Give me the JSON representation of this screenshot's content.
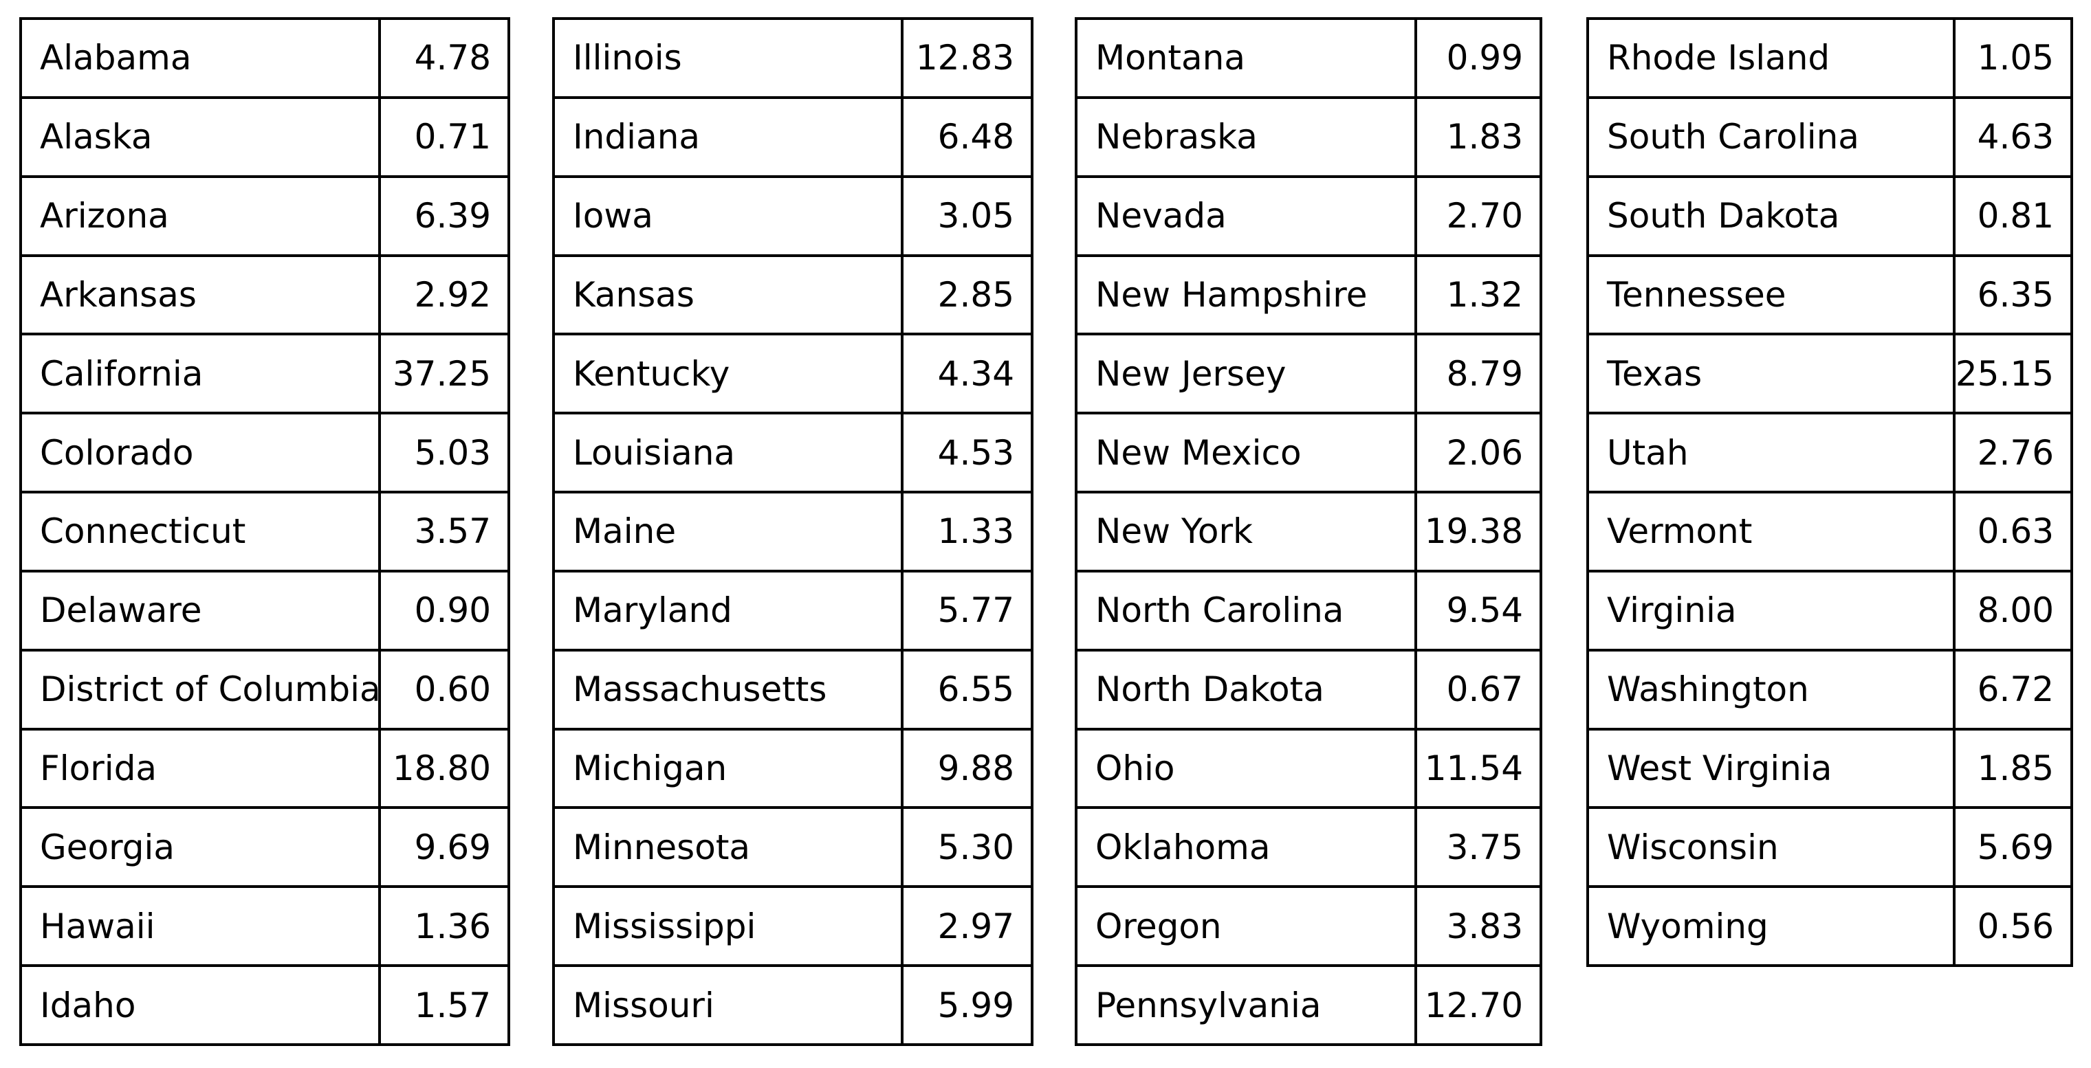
{
  "page": {
    "background_color": "#ffffff",
    "border_color": "#000000",
    "text_color": "#000000"
  },
  "chart_data": {
    "type": "table",
    "title": "",
    "layout": "four side-by-side two-column tables, state name left-aligned, value right-aligned, no header row",
    "tables": [
      {
        "rows": [
          [
            "Alabama",
            "4.78"
          ],
          [
            "Alaska",
            "0.71"
          ],
          [
            "Arizona",
            "6.39"
          ],
          [
            "Arkansas",
            "2.92"
          ],
          [
            "California",
            "37.25"
          ],
          [
            "Colorado",
            "5.03"
          ],
          [
            "Connecticut",
            "3.57"
          ],
          [
            "Delaware",
            "0.90"
          ],
          [
            "District of Columbia",
            "0.60"
          ],
          [
            "Florida",
            "18.80"
          ],
          [
            "Georgia",
            "9.69"
          ],
          [
            "Hawaii",
            "1.36"
          ],
          [
            "Idaho",
            "1.57"
          ]
        ]
      },
      {
        "rows": [
          [
            "Illinois",
            "12.83"
          ],
          [
            "Indiana",
            "6.48"
          ],
          [
            "Iowa",
            "3.05"
          ],
          [
            "Kansas",
            "2.85"
          ],
          [
            "Kentucky",
            "4.34"
          ],
          [
            "Louisiana",
            "4.53"
          ],
          [
            "Maine",
            "1.33"
          ],
          [
            "Maryland",
            "5.77"
          ],
          [
            "Massachusetts",
            "6.55"
          ],
          [
            "Michigan",
            "9.88"
          ],
          [
            "Minnesota",
            "5.30"
          ],
          [
            "Mississippi",
            "2.97"
          ],
          [
            "Missouri",
            "5.99"
          ]
        ]
      },
      {
        "rows": [
          [
            "Montana",
            "0.99"
          ],
          [
            "Nebraska",
            "1.83"
          ],
          [
            "Nevada",
            "2.70"
          ],
          [
            "New Hampshire",
            "1.32"
          ],
          [
            "New Jersey",
            "8.79"
          ],
          [
            "New Mexico",
            "2.06"
          ],
          [
            "New York",
            "19.38"
          ],
          [
            "North Carolina",
            "9.54"
          ],
          [
            "North Dakota",
            "0.67"
          ],
          [
            "Ohio",
            "11.54"
          ],
          [
            "Oklahoma",
            "3.75"
          ],
          [
            "Oregon",
            "3.83"
          ],
          [
            "Pennsylvania",
            "12.70"
          ]
        ]
      },
      {
        "rows": [
          [
            "Rhode Island",
            "1.05"
          ],
          [
            "South Carolina",
            "4.63"
          ],
          [
            "South Dakota",
            "0.81"
          ],
          [
            "Tennessee",
            "6.35"
          ],
          [
            "Texas",
            "25.15"
          ],
          [
            "Utah",
            "2.76"
          ],
          [
            "Vermont",
            "0.63"
          ],
          [
            "Virginia",
            "8.00"
          ],
          [
            "Washington",
            "6.72"
          ],
          [
            "West Virginia",
            "1.85"
          ],
          [
            "Wisconsin",
            "5.69"
          ],
          [
            "Wyoming",
            "0.56"
          ]
        ]
      }
    ]
  }
}
